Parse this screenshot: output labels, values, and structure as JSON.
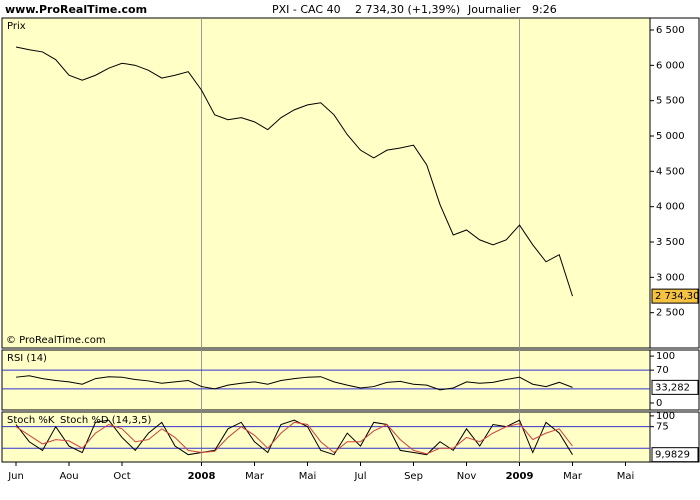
{
  "header": {
    "site": "www.ProRealTime.com",
    "symbol": "PXI - CAC 40",
    "quote": "2 734,30 (+1,39%)",
    "period": "Journalier",
    "time": "9:26"
  },
  "chart_data": [
    {
      "type": "line",
      "label": "Prix",
      "credit": "© ProRealTime.com",
      "categories": [
        "Jun",
        null,
        null,
        null,
        "Aou",
        null,
        null,
        null,
        "Oct",
        null,
        null,
        null,
        null,
        null,
        "2008",
        null,
        null,
        null,
        "Mar",
        null,
        null,
        null,
        "Mai",
        null,
        null,
        null,
        "Jul",
        null,
        null,
        null,
        "Sep",
        null,
        null,
        null,
        "Nov",
        null,
        null,
        null,
        "2009",
        null,
        null,
        null,
        "Mar",
        null,
        null,
        null,
        "Mai",
        null
      ],
      "series": [
        {
          "name": "CAC 40",
          "color": "#000000",
          "values": [
            6260,
            6220,
            6190,
            6080,
            5860,
            5790,
            5860,
            5960,
            6030,
            6000,
            5930,
            5820,
            5860,
            5910,
            5650,
            5300,
            5230,
            5260,
            5200,
            5090,
            5260,
            5370,
            5440,
            5470,
            5300,
            5020,
            4800,
            4690,
            4800,
            4830,
            4870,
            4590,
            4030,
            3600,
            3670,
            3530,
            3460,
            3530,
            3740,
            3460,
            3220,
            3320,
            2734.3,
            null,
            null,
            null,
            null,
            null
          ]
        }
      ],
      "ylim": [
        2000,
        6670
      ],
      "yticks": [
        {
          "value": 6500,
          "label": "6 500"
        },
        {
          "value": 6000,
          "label": "6 000"
        },
        {
          "value": 5500,
          "label": "5 500"
        },
        {
          "value": 5000,
          "label": "5 000"
        },
        {
          "value": 4500,
          "label": "4 500"
        },
        {
          "value": 4000,
          "label": "4 000"
        },
        {
          "value": 3500,
          "label": "3 500"
        },
        {
          "value": 3000,
          "label": "3 000"
        },
        {
          "value": 2500,
          "label": "2 500"
        }
      ],
      "marker": {
        "value": 2734.3,
        "label": "2 734,30",
        "color": "#f5c242"
      }
    },
    {
      "type": "line",
      "label": "RSI (14)",
      "series": [
        {
          "name": "RSI",
          "color": "#000000",
          "values": [
            55,
            58,
            52,
            48,
            45,
            40,
            52,
            56,
            55,
            50,
            47,
            42,
            45,
            48,
            35,
            30,
            38,
            42,
            45,
            40,
            48,
            52,
            55,
            56,
            45,
            38,
            32,
            35,
            44,
            46,
            40,
            38,
            28,
            32,
            45,
            42,
            44,
            50,
            55,
            40,
            35,
            44,
            33.282,
            null,
            null,
            null,
            null,
            null
          ]
        }
      ],
      "ylim": [
        -15,
        113
      ],
      "yticks": [
        0,
        70,
        100
      ],
      "levels": [
        30,
        70
      ],
      "marker": {
        "value": 33.282,
        "label": "33,282",
        "color": "#ffffff"
      }
    },
    {
      "type": "line",
      "label": "Stoch %K",
      "label2": "Stoch %D (14,3,5)",
      "series": [
        {
          "name": "Stoch %K",
          "color": "#000000",
          "values": [
            80,
            40,
            20,
            75,
            30,
            15,
            85,
            90,
            50,
            20,
            60,
            85,
            30,
            10,
            15,
            20,
            70,
            85,
            40,
            15,
            80,
            90,
            75,
            20,
            10,
            60,
            30,
            85,
            80,
            20,
            15,
            10,
            40,
            20,
            70,
            30,
            80,
            75,
            90,
            15,
            85,
            60,
            9.9829,
            null,
            null,
            null,
            null,
            null
          ]
        },
        {
          "name": "Stoch %D",
          "color": "#d04040",
          "values": [
            75,
            55,
            35,
            45,
            42,
            25,
            60,
            80,
            70,
            40,
            45,
            70,
            50,
            20,
            15,
            18,
            50,
            75,
            55,
            25,
            60,
            85,
            80,
            40,
            15,
            40,
            40,
            65,
            80,
            45,
            20,
            12,
            25,
            25,
            50,
            40,
            60,
            75,
            82,
            45,
            60,
            70,
            30,
            null,
            null,
            null,
            null,
            null
          ]
        }
      ],
      "ylim": [
        -7,
        109
      ],
      "yticks": [
        75,
        100
      ],
      "levels": [
        25,
        75
      ],
      "marker": {
        "value": 9.9829,
        "label": "9,9829",
        "color": "#ffffff"
      }
    }
  ]
}
